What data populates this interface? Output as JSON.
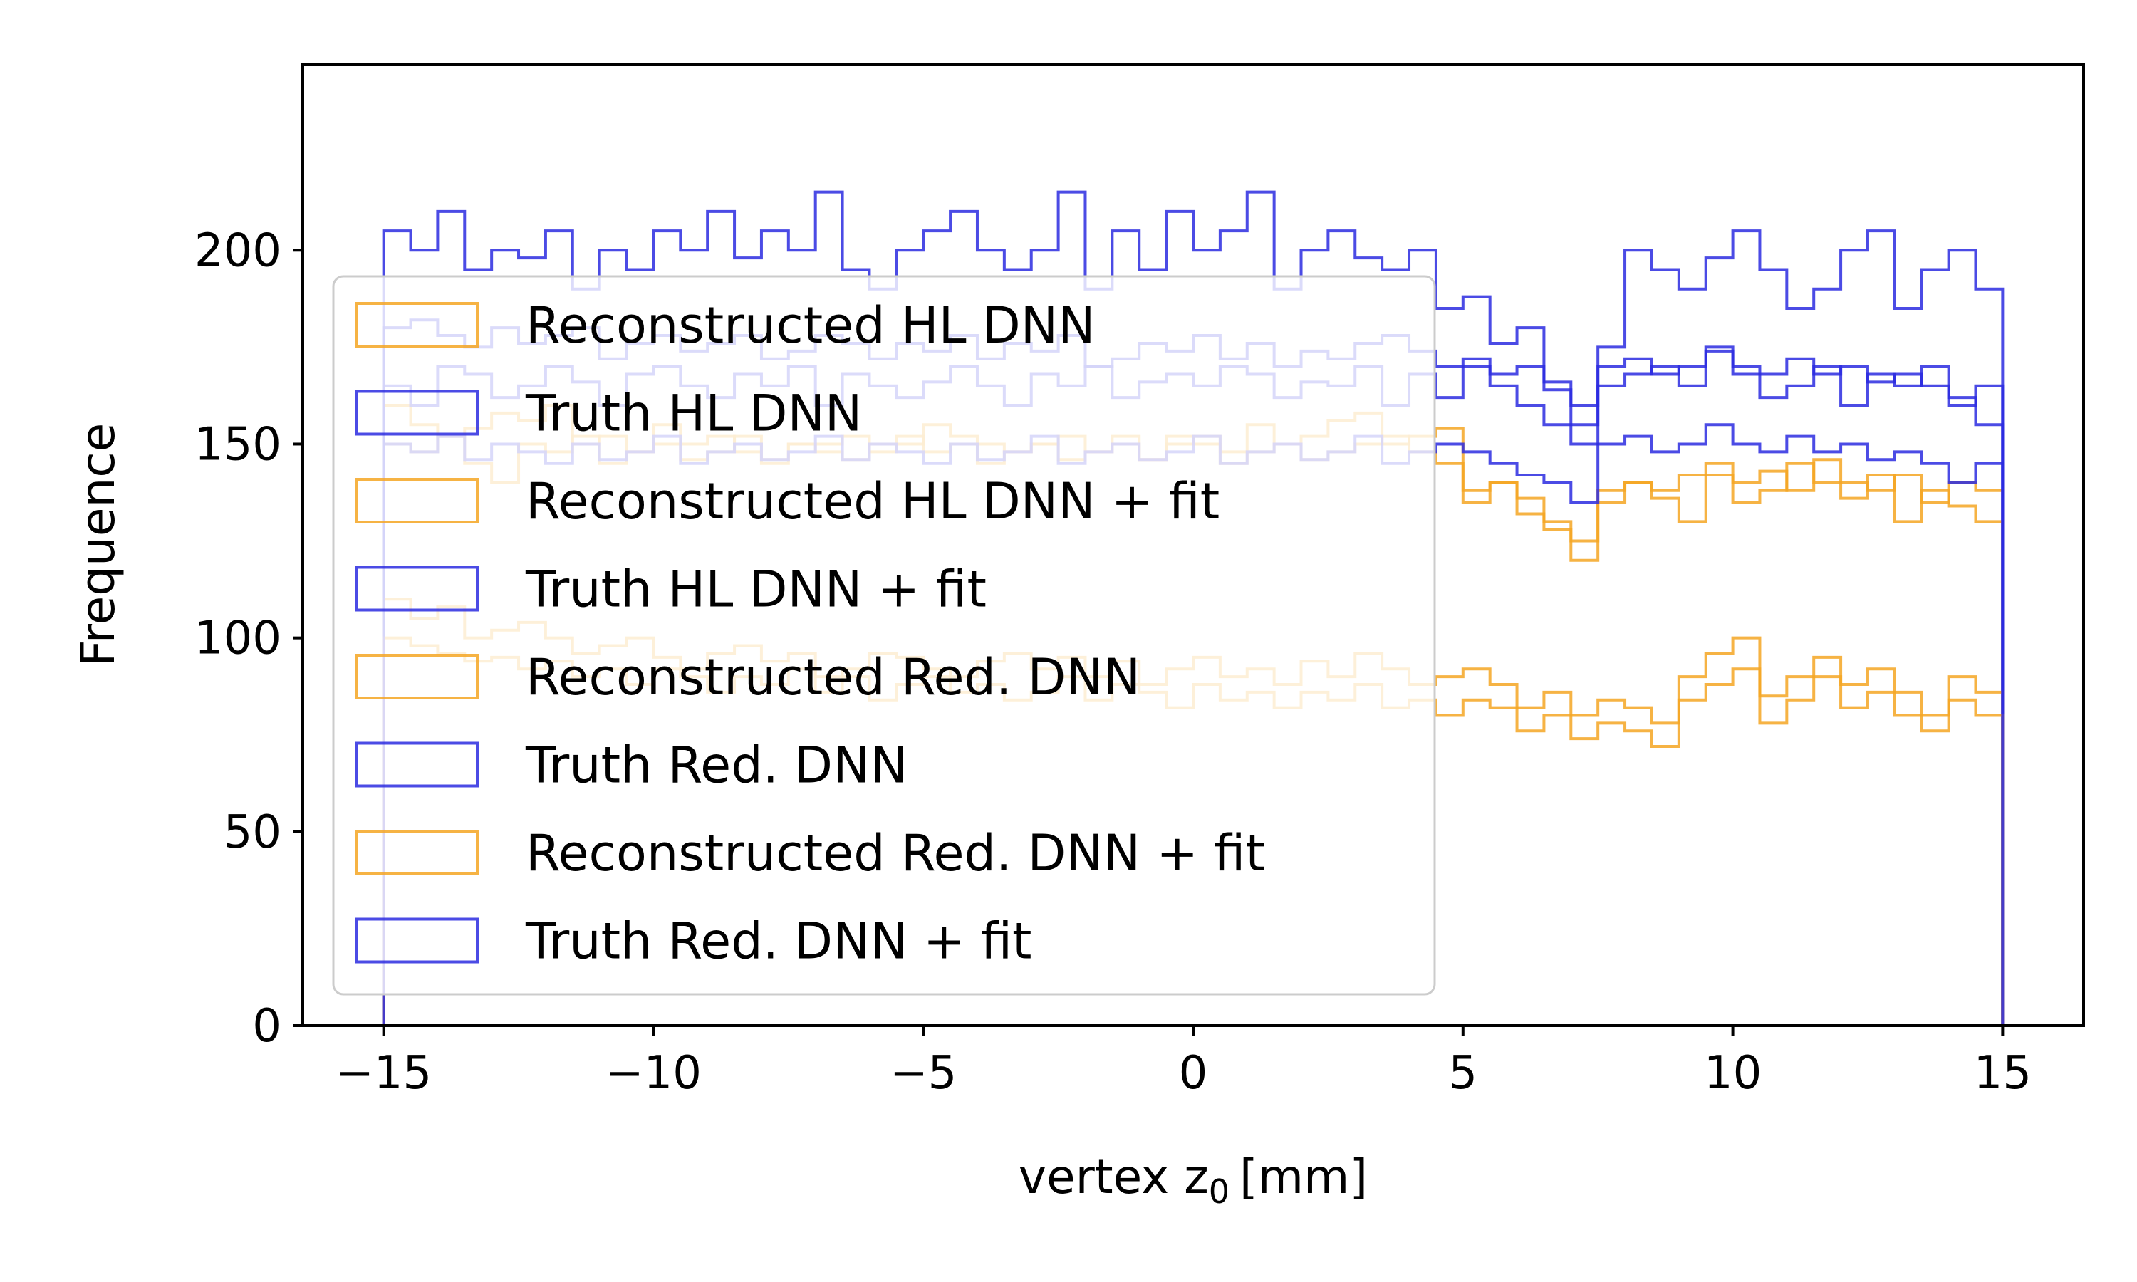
{
  "chart_data": {
    "type": "histogram",
    "xlabel": "vertex z",
    "xlabel_sub": "0",
    "xlabel_unit": "[mm]",
    "ylabel": "Frequence",
    "xlim": [
      -16.5,
      16.5
    ],
    "ylim": [
      0,
      248
    ],
    "xticks": [
      -15,
      -10,
      -5,
      0,
      5,
      10,
      15
    ],
    "xtick_labels": [
      "−15",
      "−10",
      "−5",
      "0",
      "5",
      "10",
      "15"
    ],
    "yticks": [
      0,
      50,
      100,
      150,
      200
    ],
    "ytick_labels": [
      "0",
      "50",
      "100",
      "150",
      "200"
    ],
    "bins": {
      "start": -15,
      "end": 15,
      "count": 60
    },
    "grid": false,
    "legend_position": "lower-left",
    "colors": {
      "reconstructed": "#F5A623",
      "truth": "#2B2BE0"
    },
    "series": [
      {
        "name": "Reconstructed HL DNN",
        "color": "#F5A623",
        "values": [
          160,
          155,
          152,
          154,
          158,
          156,
          160,
          150,
          152,
          148,
          155,
          150,
          152,
          148,
          146,
          150,
          150,
          152,
          148,
          150,
          155,
          152,
          150,
          148,
          150,
          152,
          148,
          150,
          146,
          152,
          150,
          148,
          155,
          150,
          152,
          156,
          158,
          150,
          152,
          154,
          138,
          140,
          136,
          130,
          120,
          135,
          140,
          138,
          142,
          145,
          140,
          143,
          138,
          146,
          140,
          138,
          142,
          135,
          140,
          138
        ]
      },
      {
        "name": "Truth HL DNN",
        "color": "#2B2BE0",
        "values": [
          205,
          200,
          210,
          195,
          200,
          198,
          205,
          190,
          200,
          195,
          205,
          200,
          210,
          198,
          205,
          200,
          215,
          195,
          190,
          200,
          205,
          210,
          200,
          195,
          200,
          215,
          190,
          205,
          195,
          210,
          200,
          205,
          215,
          190,
          200,
          205,
          198,
          195,
          200,
          185,
          188,
          176,
          180,
          164,
          155,
          175,
          200,
          195,
          190,
          198,
          205,
          195,
          185,
          190,
          200,
          205,
          185,
          195,
          200,
          190
        ]
      },
      {
        "name": "Reconstructed HL DNN + fit",
        "color": "#F5A623",
        "values": [
          150,
          148,
          152,
          145,
          140,
          150,
          148,
          152,
          145,
          148,
          150,
          146,
          148,
          152,
          145,
          150,
          148,
          146,
          150,
          152,
          148,
          150,
          145,
          148,
          150,
          146,
          148,
          152,
          146,
          150,
          152,
          145,
          148,
          150,
          146,
          148,
          150,
          152,
          148,
          145,
          135,
          140,
          132,
          128,
          125,
          138,
          140,
          136,
          130,
          142,
          135,
          138,
          145,
          140,
          136,
          142,
          130,
          138,
          134,
          130
        ]
      },
      {
        "name": "Truth HL DNN + fit",
        "color": "#2B2BE0",
        "values": [
          165,
          160,
          170,
          168,
          162,
          165,
          170,
          166,
          160,
          168,
          170,
          165,
          162,
          168,
          165,
          170,
          160,
          168,
          165,
          162,
          166,
          170,
          165,
          160,
          168,
          165,
          170,
          162,
          166,
          168,
          165,
          170,
          168,
          162,
          166,
          165,
          170,
          160,
          168,
          162,
          170,
          165,
          160,
          155,
          150,
          165,
          168,
          170,
          165,
          175,
          168,
          162,
          165,
          170,
          160,
          168,
          165,
          170,
          162,
          155
        ]
      },
      {
        "name": "Reconstructed Red. DNN",
        "color": "#F5A623",
        "values": [
          110,
          105,
          108,
          100,
          102,
          104,
          100,
          96,
          98,
          100,
          95,
          92,
          96,
          98,
          94,
          96,
          90,
          92,
          96,
          95,
          92,
          90,
          94,
          96,
          92,
          95,
          90,
          94,
          88,
          92,
          95,
          90,
          92,
          88,
          94,
          90,
          96,
          92,
          88,
          90,
          92,
          88,
          82,
          86,
          80,
          84,
          82,
          78,
          90,
          96,
          100,
          85,
          90,
          95,
          88,
          92,
          86,
          80,
          90,
          86
        ]
      },
      {
        "name": "Truth Red. DNN",
        "color": "#2B2BE0",
        "values": [
          180,
          182,
          178,
          175,
          180,
          176,
          178,
          180,
          172,
          176,
          178,
          174,
          176,
          178,
          172,
          174,
          178,
          176,
          172,
          176,
          174,
          178,
          172,
          176,
          174,
          178,
          170,
          172,
          176,
          174,
          178,
          172,
          176,
          170,
          174,
          172,
          176,
          178,
          174,
          170,
          172,
          168,
          170,
          166,
          160,
          170,
          172,
          168,
          170,
          174,
          170,
          168,
          172,
          168,
          170,
          166,
          168,
          165,
          160,
          165
        ]
      },
      {
        "name": "Reconstructed Red. DNN + fit",
        "color": "#F5A623",
        "values": [
          100,
          98,
          96,
          94,
          95,
          92,
          94,
          90,
          92,
          88,
          92,
          90,
          86,
          90,
          88,
          92,
          86,
          90,
          84,
          88,
          90,
          86,
          88,
          84,
          86,
          90,
          84,
          88,
          86,
          82,
          88,
          84,
          86,
          82,
          86,
          84,
          88,
          82,
          84,
          80,
          84,
          82,
          76,
          80,
          74,
          78,
          76,
          72,
          84,
          88,
          92,
          78,
          84,
          90,
          82,
          86,
          80,
          76,
          84,
          80
        ]
      },
      {
        "name": "Truth Red. DNN + fit",
        "color": "#2B2BE0",
        "values": [
          150,
          148,
          152,
          146,
          150,
          148,
          145,
          150,
          146,
          148,
          152,
          145,
          148,
          150,
          146,
          148,
          152,
          146,
          150,
          148,
          145,
          150,
          146,
          148,
          152,
          145,
          148,
          150,
          146,
          148,
          152,
          145,
          148,
          150,
          146,
          148,
          152,
          145,
          148,
          150,
          148,
          145,
          142,
          140,
          135,
          150,
          152,
          148,
          150,
          155,
          150,
          148,
          152,
          148,
          150,
          146,
          148,
          145,
          140,
          145
        ]
      }
    ]
  }
}
